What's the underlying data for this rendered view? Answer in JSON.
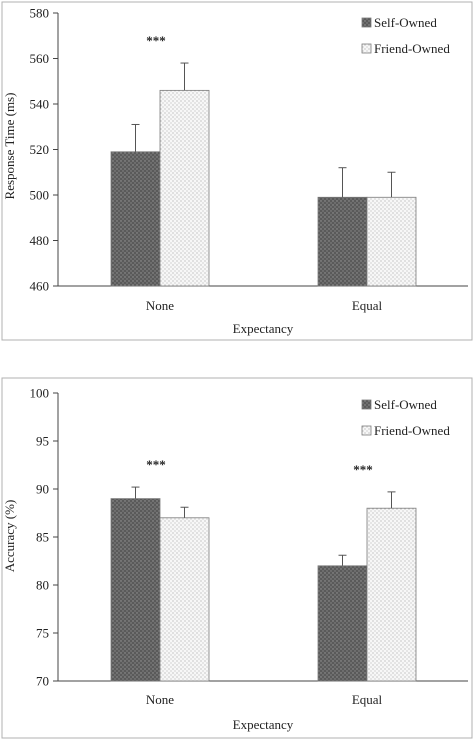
{
  "chart_data": [
    {
      "type": "bar",
      "title": "",
      "xlabel": "Expectancy",
      "ylabel": "Response Time (ms)",
      "ylim": [
        460,
        580
      ],
      "yticks": [
        460,
        480,
        500,
        520,
        540,
        560,
        580
      ],
      "categories": [
        "None",
        "Equal"
      ],
      "series": [
        {
          "name": "Self-Owned",
          "values": [
            519,
            499
          ],
          "errors": [
            12,
            13
          ],
          "color": "#555555"
        },
        {
          "name": "Friend-Owned",
          "values": [
            546,
            499
          ],
          "errors": [
            12,
            11
          ],
          "color": "#f2f2f2"
        }
      ],
      "significance": [
        {
          "category": "None",
          "label": "***"
        }
      ],
      "grid": false,
      "legend_position": "top-right"
    },
    {
      "type": "bar",
      "title": "",
      "xlabel": "Expectancy",
      "ylabel": "Accuracy (%)",
      "ylim": [
        70,
        100
      ],
      "yticks": [
        70,
        75,
        80,
        85,
        90,
        95,
        100
      ],
      "categories": [
        "None",
        "Equal"
      ],
      "series": [
        {
          "name": "Self-Owned",
          "values": [
            89,
            82
          ],
          "errors": [
            1.2,
            1.1
          ],
          "color": "#555555"
        },
        {
          "name": "Friend-Owned",
          "values": [
            87,
            88
          ],
          "errors": [
            1.1,
            1.7
          ],
          "color": "#f2f2f2"
        }
      ],
      "significance": [
        {
          "category": "None",
          "label": "***"
        },
        {
          "category": "Equal",
          "label": "***"
        }
      ],
      "grid": false,
      "legend_position": "top-right"
    }
  ]
}
